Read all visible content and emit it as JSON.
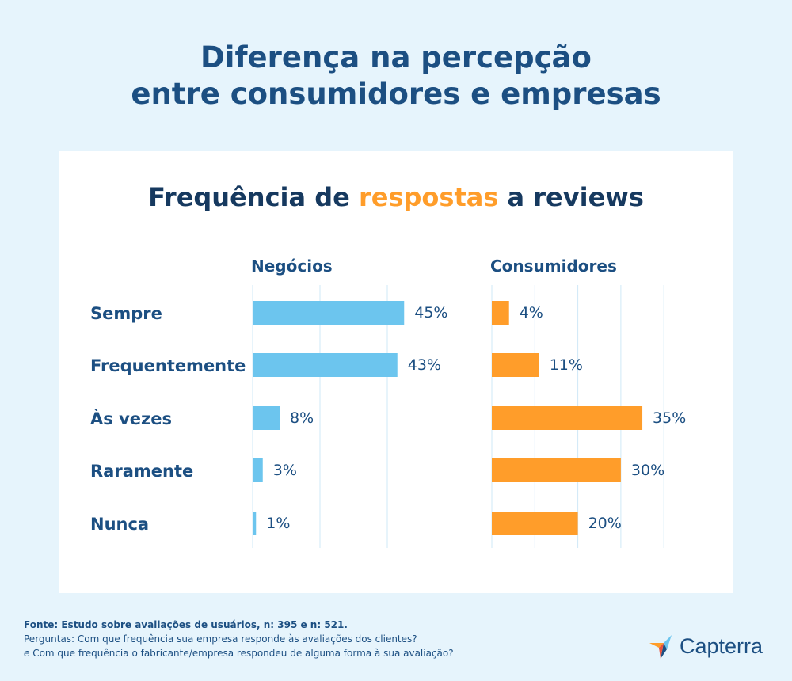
{
  "header": {
    "title_line1": "Diferença na percepção",
    "title_line2": "entre consumidores e empresas"
  },
  "chart_title": {
    "part1": "Frequência de ",
    "highlight": "respostas",
    "part2": " a reviews"
  },
  "chart_data": [
    {
      "type": "bar",
      "orientation": "horizontal",
      "title": "Negócios",
      "categories": [
        "Sempre",
        "Frequentemente",
        "Às vezes",
        "Raramente",
        "Nunca"
      ],
      "values": [
        45,
        43,
        8,
        3,
        1
      ],
      "value_labels": [
        "45%",
        "43%",
        "8%",
        "3%",
        "1%"
      ],
      "xlim": [
        0,
        50
      ],
      "grid": true,
      "color": "#6cc5ee"
    },
    {
      "type": "bar",
      "orientation": "horizontal",
      "title": "Consumidores",
      "categories": [
        "Sempre",
        "Frequentemente",
        "Às vezes",
        "Raramente",
        "Nunca"
      ],
      "values": [
        4,
        11,
        35,
        30,
        20
      ],
      "value_labels": [
        "4%",
        "11%",
        "35%",
        "30%",
        "20%"
      ],
      "xlim": [
        0,
        40
      ],
      "grid": true,
      "color": "#ff9d2a"
    }
  ],
  "footer": {
    "source": "Fonte: Estudo sobre avaliações de usuários, n: 395 e n: 521.",
    "question1": "Perguntas: Com que frequência sua empresa responde às avaliações dos clientes?",
    "question2_prefix": "e",
    "question2": " Com que frequência o fabricante/empresa respondeu de alguma forma à sua avaliação?"
  },
  "logo": {
    "text": "Capterra",
    "icon": "capterra-arrow-icon"
  },
  "colors": {
    "background": "#e6f4fc",
    "title": "#1c4f82",
    "accent_orange": "#ff9d2a",
    "accent_blue": "#6cc5ee",
    "grid": "#cfe8f7"
  }
}
